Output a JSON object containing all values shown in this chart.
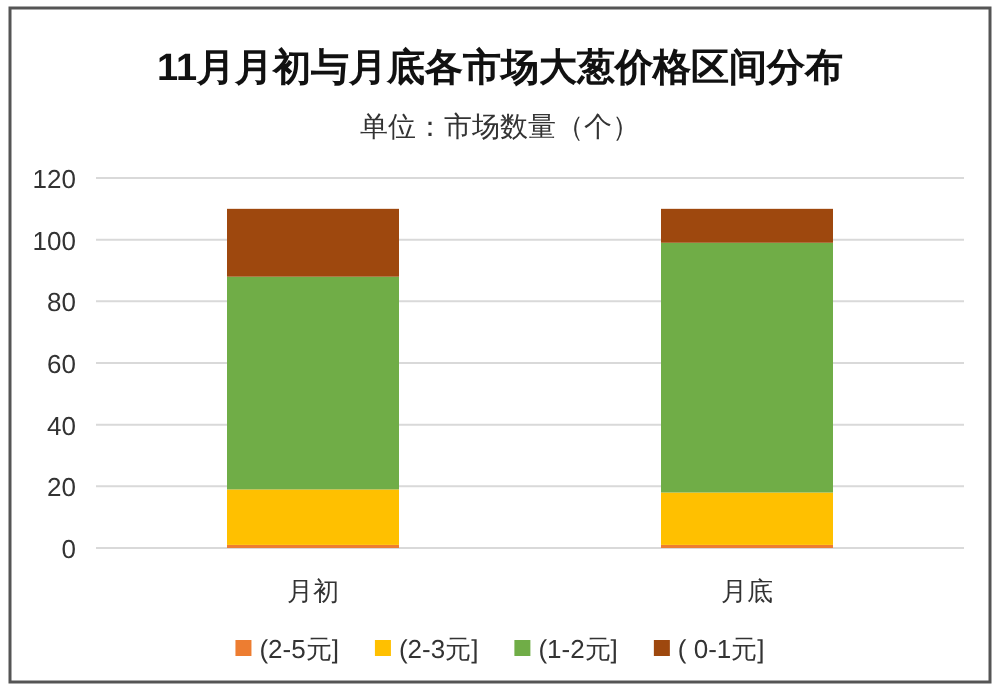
{
  "chart_data": {
    "type": "bar",
    "title": "11月月初与月底各市场大葱价格区间分布",
    "subtitle": "单位：市场数量（个）",
    "categories": [
      "月初",
      "月底"
    ],
    "stacked": true,
    "ylim": [
      0,
      120
    ],
    "yticks": [
      0,
      20,
      40,
      60,
      80,
      100,
      120
    ],
    "grid": "y",
    "legend": "bottom",
    "series": [
      {
        "name": "(2-5元]",
        "color": "#ed7d31",
        "values": [
          1,
          1
        ]
      },
      {
        "name": "(2-3元]",
        "color": "#ffc000",
        "values": [
          18,
          17
        ]
      },
      {
        "name": "(1-2元]",
        "color": "#70ad47",
        "values": [
          69,
          81
        ]
      },
      {
        "name": "( 0-1元]",
        "color": "#9e480e",
        "values": [
          22,
          11
        ]
      }
    ]
  }
}
